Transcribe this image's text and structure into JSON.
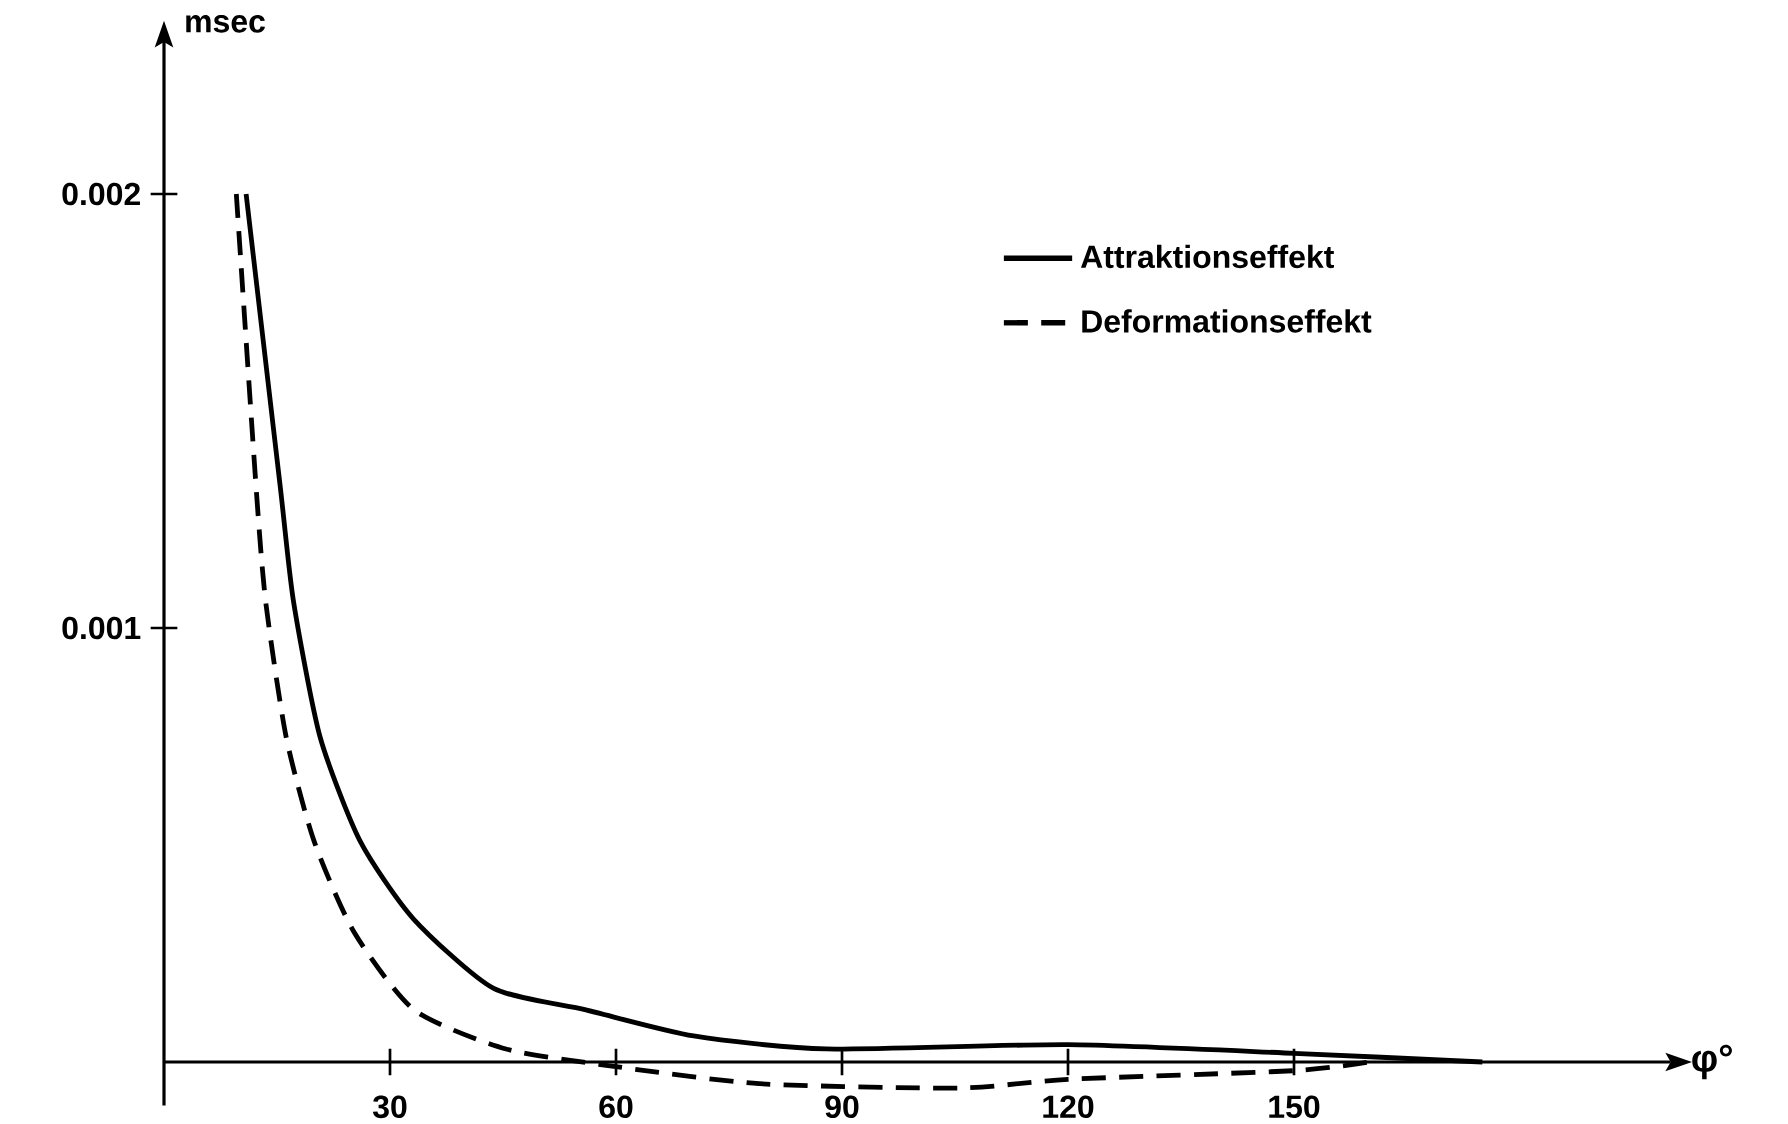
{
  "chart_data": {
    "type": "line",
    "xlabel": "φ°",
    "ylabel": "msec",
    "xlim": [
      0,
      200
    ],
    "ylim": [
      -0.0001,
      0.00235
    ],
    "xticks": [
      30,
      60,
      90,
      120,
      150
    ],
    "yticks": [
      0.001,
      0.002
    ],
    "legend": "top right",
    "series": [
      {
        "name": "Attraktionseffekt",
        "color": "#000000",
        "line_style": "solid",
        "x": [
          10.9,
          15.4,
          17.2,
          20.7,
          26.0,
          33.1,
          43.7,
          56.0,
          70.3,
          87.9,
          120,
          150,
          175
        ],
        "values": [
          0.002,
          0.00133,
          0.00106,
          0.00075,
          0.00051,
          0.00033,
          0.00017,
          0.00012,
          6e-05,
          3e-05,
          4e-05,
          2e-05,
          0
        ]
      },
      {
        "name": "Deformationseffekt",
        "color": "#000000",
        "line_style": "dashed",
        "x": [
          9.6,
          12.2,
          13.5,
          16.2,
          19.9,
          25.2,
          33.2,
          45.4,
          59.7,
          79,
          105.6,
          120,
          150,
          160
        ],
        "values": [
          0.002,
          0.00133,
          0.00106,
          0.00075,
          0.00051,
          0.0003,
          0.00012,
          3e-05,
          -1e-05,
          -5e-05,
          -6e-05,
          -4e-05,
          -2e-05,
          0
        ]
      }
    ]
  }
}
